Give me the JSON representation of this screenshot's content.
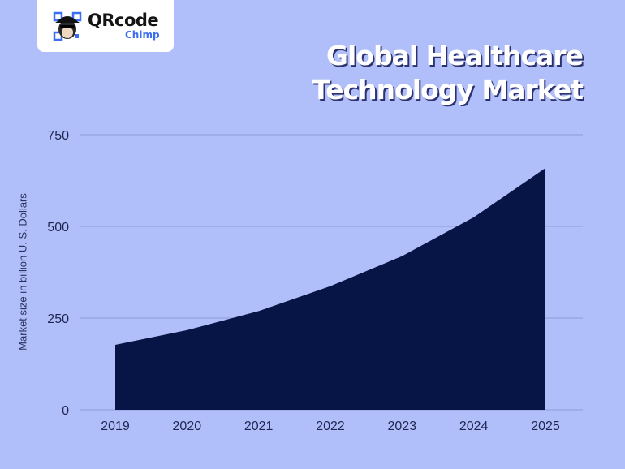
{
  "logo": {
    "main": "QRcode",
    "sub": "Chimp",
    "icon": "monkey-qr-icon"
  },
  "title": {
    "line1": "Global Healthcare",
    "line2": "Technology Market"
  },
  "colors": {
    "background": "#b0bff9",
    "area": "#061446",
    "grid": "#8e9ddd",
    "title_text": "#ffffff",
    "title_shadow": "#2c3270",
    "logo_accent": "#3b6ef0"
  },
  "chart_data": {
    "type": "area",
    "title": "Global Healthcare Technology Market",
    "xlabel": "",
    "ylabel": "Market size in billion U. S. Dollars",
    "categories": [
      "2019",
      "2020",
      "2021",
      "2022",
      "2023",
      "2024",
      "2025"
    ],
    "values": [
      177,
      217,
      269,
      337,
      419,
      525,
      659
    ],
    "yticks": [
      "0",
      "250",
      "500",
      "750"
    ],
    "ylim": [
      0,
      750
    ],
    "grid": true,
    "legend": null
  }
}
